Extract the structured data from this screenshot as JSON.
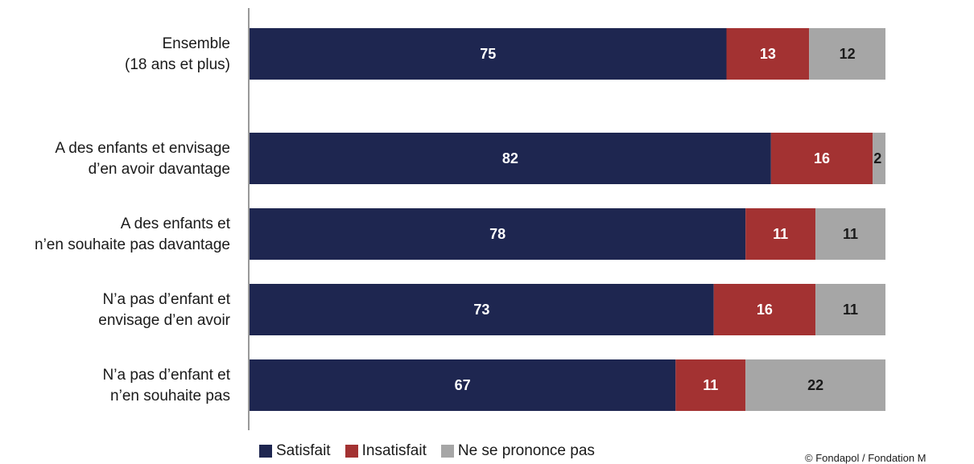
{
  "chart_data": {
    "type": "bar",
    "orientation": "horizontal",
    "stacked": true,
    "xlim": [
      0,
      100
    ],
    "grid": false,
    "legend_position": "bottom",
    "categories": [
      [
        "Ensemble",
        "(18 ans et plus)"
      ],
      [
        "A des enfants et envisage",
        "d’en avoir davantage"
      ],
      [
        "A des enfants et",
        "n’en souhaite pas davantage"
      ],
      [
        "N’a pas d’enfant et",
        "envisage d’en avoir"
      ],
      [
        "N’a pas d’enfant et",
        "n’en souhaite pas"
      ]
    ],
    "series": [
      {
        "name": "Satisfait",
        "color": "#1e2650",
        "label_color": "#ffffff",
        "values": [
          75,
          82,
          78,
          73,
          67
        ]
      },
      {
        "name": "Insatisfait",
        "color": "#a33232",
        "label_color": "#ffffff",
        "values": [
          13,
          16,
          11,
          16,
          11
        ]
      },
      {
        "name": "Ne se prononce pas",
        "color": "#a6a6a6",
        "label_color": "#1a1a1a",
        "values": [
          12,
          2,
          11,
          11,
          22
        ]
      }
    ]
  },
  "legend": {
    "items": [
      {
        "label": "Satisfait",
        "color": "#1e2650"
      },
      {
        "label": "Insatisfait",
        "color": "#a33232"
      },
      {
        "label": "Ne se prononce pas",
        "color": "#a6a6a6"
      }
    ]
  },
  "credit": "© Fondapol / Fondation M"
}
